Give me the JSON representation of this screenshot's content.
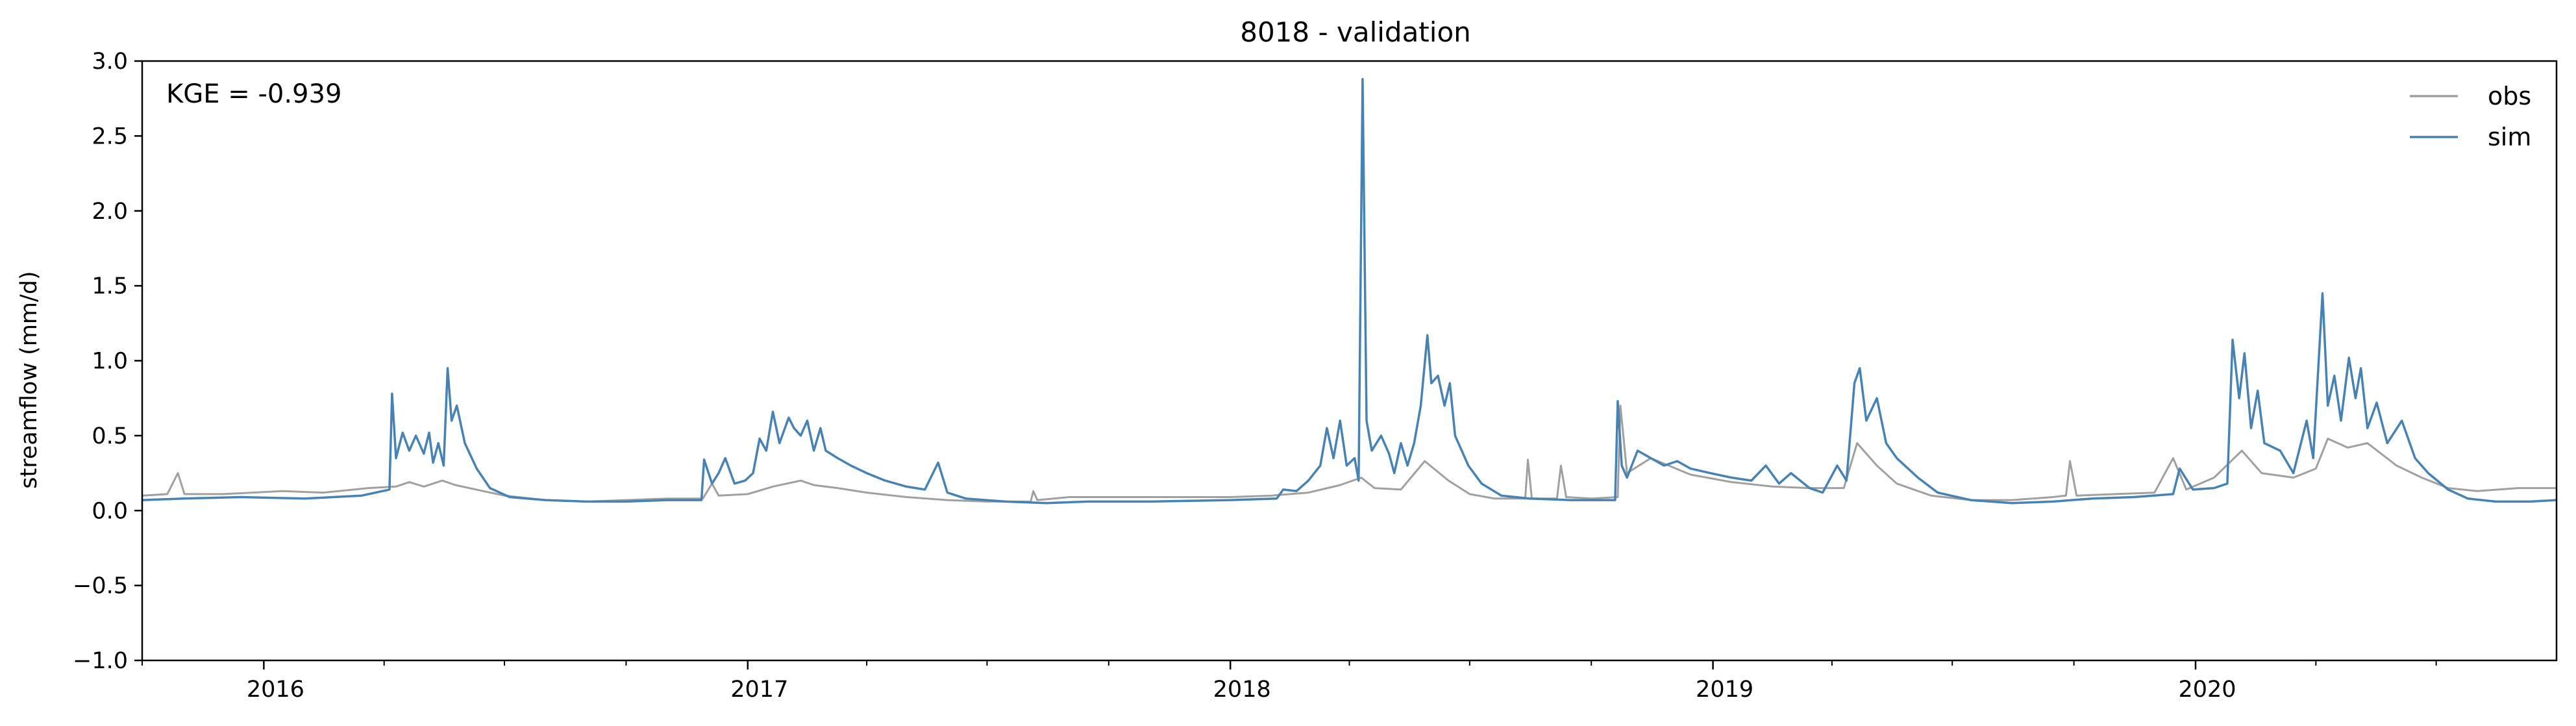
{
  "chart_data": {
    "type": "line",
    "title": "8018 - validation",
    "xlabel": "",
    "ylabel": "streamflow (mm/d)",
    "annotation": "KGE = -0.939",
    "xlim": [
      "2015-10-01",
      "2020-09-30"
    ],
    "ylim": [
      -1.0,
      3.0
    ],
    "yticks": [
      -1.0,
      -0.5,
      0.0,
      0.5,
      1.0,
      1.5,
      2.0,
      2.5,
      3.0
    ],
    "ytick_labels": [
      "−1.0",
      "−0.5",
      "0.0",
      "0.5",
      "1.0",
      "1.5",
      "2.0",
      "2.5",
      "3.0"
    ],
    "xticks": [
      {
        "date": "2016-01-01",
        "label": "2016"
      },
      {
        "date": "2017-01-01",
        "label": "2017"
      },
      {
        "date": "2018-01-01",
        "label": "2018"
      },
      {
        "date": "2019-01-01",
        "label": "2019"
      },
      {
        "date": "2020-01-01",
        "label": "2020"
      }
    ],
    "grid": false,
    "legend_position": "top-right",
    "series": [
      {
        "name": "obs",
        "color": "#a0a0a0",
        "points": [
          [
            "2015-10-01",
            0.1
          ],
          [
            "2015-10-20",
            0.11
          ],
          [
            "2015-10-28",
            0.25
          ],
          [
            "2015-11-02",
            0.11
          ],
          [
            "2015-12-01",
            0.11
          ],
          [
            "2016-01-15",
            0.13
          ],
          [
            "2016-02-15",
            0.12
          ],
          [
            "2016-03-20",
            0.15
          ],
          [
            "2016-04-10",
            0.16
          ],
          [
            "2016-04-20",
            0.19
          ],
          [
            "2016-05-01",
            0.16
          ],
          [
            "2016-05-15",
            0.2
          ],
          [
            "2016-05-25",
            0.17
          ],
          [
            "2016-06-15",
            0.13
          ],
          [
            "2016-07-01",
            0.1
          ],
          [
            "2016-08-01",
            0.07
          ],
          [
            "2016-09-01",
            0.06
          ],
          [
            "2016-10-01",
            0.07
          ],
          [
            "2016-11-01",
            0.08
          ],
          [
            "2016-11-28",
            0.08
          ],
          [
            "2016-12-05",
            0.18
          ],
          [
            "2016-12-10",
            0.1
          ],
          [
            "2017-01-01",
            0.11
          ],
          [
            "2017-01-20",
            0.16
          ],
          [
            "2017-02-10",
            0.2
          ],
          [
            "2017-02-20",
            0.17
          ],
          [
            "2017-03-10",
            0.15
          ],
          [
            "2017-04-01",
            0.12
          ],
          [
            "2017-05-01",
            0.09
          ],
          [
            "2017-06-01",
            0.07
          ],
          [
            "2017-07-01",
            0.06
          ],
          [
            "2017-08-03",
            0.06
          ],
          [
            "2017-08-05",
            0.13
          ],
          [
            "2017-08-08",
            0.07
          ],
          [
            "2017-09-01",
            0.09
          ],
          [
            "2017-11-01",
            0.09
          ],
          [
            "2018-01-01",
            0.09
          ],
          [
            "2018-02-01",
            0.1
          ],
          [
            "2018-03-01",
            0.12
          ],
          [
            "2018-03-25",
            0.17
          ],
          [
            "2018-04-10",
            0.22
          ],
          [
            "2018-04-20",
            0.15
          ],
          [
            "2018-05-10",
            0.14
          ],
          [
            "2018-05-28",
            0.33
          ],
          [
            "2018-06-15",
            0.2
          ],
          [
            "2018-07-01",
            0.11
          ],
          [
            "2018-07-20",
            0.08
          ],
          [
            "2018-08-12",
            0.08
          ],
          [
            "2018-08-14",
            0.34
          ],
          [
            "2018-08-17",
            0.08
          ],
          [
            "2018-09-05",
            0.08
          ],
          [
            "2018-09-08",
            0.3
          ],
          [
            "2018-09-12",
            0.09
          ],
          [
            "2018-10-01",
            0.08
          ],
          [
            "2018-10-21",
            0.09
          ],
          [
            "2018-10-23",
            0.7
          ],
          [
            "2018-10-28",
            0.25
          ],
          [
            "2018-11-15",
            0.35
          ],
          [
            "2018-12-15",
            0.24
          ],
          [
            "2019-01-15",
            0.19
          ],
          [
            "2019-02-15",
            0.16
          ],
          [
            "2019-03-15",
            0.15
          ],
          [
            "2019-04-10",
            0.15
          ],
          [
            "2019-04-20",
            0.45
          ],
          [
            "2019-05-05",
            0.3
          ],
          [
            "2019-05-20",
            0.18
          ],
          [
            "2019-06-15",
            0.1
          ],
          [
            "2019-07-15",
            0.07
          ],
          [
            "2019-08-15",
            0.07
          ],
          [
            "2019-09-15",
            0.09
          ],
          [
            "2019-09-25",
            0.1
          ],
          [
            "2019-09-28",
            0.33
          ],
          [
            "2019-10-03",
            0.1
          ],
          [
            "2019-11-01",
            0.11
          ],
          [
            "2019-12-01",
            0.12
          ],
          [
            "2019-12-15",
            0.35
          ],
          [
            "2019-12-25",
            0.14
          ],
          [
            "2020-01-15",
            0.22
          ],
          [
            "2020-02-05",
            0.4
          ],
          [
            "2020-02-20",
            0.25
          ],
          [
            "2020-03-15",
            0.22
          ],
          [
            "2020-04-01",
            0.28
          ],
          [
            "2020-04-10",
            0.48
          ],
          [
            "2020-04-25",
            0.42
          ],
          [
            "2020-05-10",
            0.45
          ],
          [
            "2020-06-01",
            0.3
          ],
          [
            "2020-06-20",
            0.22
          ],
          [
            "2020-07-10",
            0.15
          ],
          [
            "2020-08-01",
            0.13
          ],
          [
            "2020-09-01",
            0.15
          ],
          [
            "2020-09-30",
            0.15
          ]
        ]
      },
      {
        "name": "sim",
        "color": "#4682b4",
        "points": [
          [
            "2015-10-01",
            0.07
          ],
          [
            "2015-11-01",
            0.08
          ],
          [
            "2015-12-15",
            0.09
          ],
          [
            "2016-02-01",
            0.08
          ],
          [
            "2016-03-15",
            0.1
          ],
          [
            "2016-04-05",
            0.14
          ],
          [
            "2016-04-07",
            0.78
          ],
          [
            "2016-04-10",
            0.35
          ],
          [
            "2016-04-15",
            0.52
          ],
          [
            "2016-04-20",
            0.4
          ],
          [
            "2016-04-25",
            0.5
          ],
          [
            "2016-05-01",
            0.38
          ],
          [
            "2016-05-05",
            0.52
          ],
          [
            "2016-05-08",
            0.32
          ],
          [
            "2016-05-12",
            0.45
          ],
          [
            "2016-05-16",
            0.3
          ],
          [
            "2016-05-19",
            0.95
          ],
          [
            "2016-05-22",
            0.6
          ],
          [
            "2016-05-26",
            0.7
          ],
          [
            "2016-06-01",
            0.45
          ],
          [
            "2016-06-10",
            0.28
          ],
          [
            "2016-06-20",
            0.15
          ],
          [
            "2016-07-05",
            0.09
          ],
          [
            "2016-08-01",
            0.07
          ],
          [
            "2016-09-01",
            0.06
          ],
          [
            "2016-10-01",
            0.06
          ],
          [
            "2016-11-01",
            0.07
          ],
          [
            "2016-11-27",
            0.07
          ],
          [
            "2016-11-29",
            0.34
          ],
          [
            "2016-12-05",
            0.18
          ],
          [
            "2016-12-10",
            0.25
          ],
          [
            "2016-12-15",
            0.35
          ],
          [
            "2016-12-22",
            0.18
          ],
          [
            "2016-12-30",
            0.2
          ],
          [
            "2017-01-05",
            0.25
          ],
          [
            "2017-01-10",
            0.48
          ],
          [
            "2017-01-15",
            0.4
          ],
          [
            "2017-01-20",
            0.66
          ],
          [
            "2017-01-25",
            0.45
          ],
          [
            "2017-02-01",
            0.62
          ],
          [
            "2017-02-05",
            0.55
          ],
          [
            "2017-02-10",
            0.5
          ],
          [
            "2017-02-15",
            0.6
          ],
          [
            "2017-02-20",
            0.4
          ],
          [
            "2017-02-25",
            0.55
          ],
          [
            "2017-03-01",
            0.4
          ],
          [
            "2017-03-10",
            0.35
          ],
          [
            "2017-03-20",
            0.3
          ],
          [
            "2017-04-01",
            0.25
          ],
          [
            "2017-04-15",
            0.2
          ],
          [
            "2017-05-01",
            0.16
          ],
          [
            "2017-05-15",
            0.14
          ],
          [
            "2017-05-25",
            0.32
          ],
          [
            "2017-06-01",
            0.12
          ],
          [
            "2017-06-15",
            0.08
          ],
          [
            "2017-07-15",
            0.06
          ],
          [
            "2017-08-15",
            0.05
          ],
          [
            "2017-09-15",
            0.06
          ],
          [
            "2017-11-01",
            0.06
          ],
          [
            "2018-01-01",
            0.07
          ],
          [
            "2018-02-05",
            0.08
          ],
          [
            "2018-02-10",
            0.14
          ],
          [
            "2018-02-20",
            0.13
          ],
          [
            "2018-03-01",
            0.2
          ],
          [
            "2018-03-10",
            0.3
          ],
          [
            "2018-03-15",
            0.55
          ],
          [
            "2018-03-20",
            0.35
          ],
          [
            "2018-03-25",
            0.6
          ],
          [
            "2018-03-30",
            0.3
          ],
          [
            "2018-04-05",
            0.35
          ],
          [
            "2018-04-08",
            0.2
          ],
          [
            "2018-04-11",
            2.88
          ],
          [
            "2018-04-14",
            0.6
          ],
          [
            "2018-04-18",
            0.4
          ],
          [
            "2018-04-25",
            0.5
          ],
          [
            "2018-05-01",
            0.38
          ],
          [
            "2018-05-05",
            0.25
          ],
          [
            "2018-05-10",
            0.45
          ],
          [
            "2018-05-15",
            0.3
          ],
          [
            "2018-05-20",
            0.45
          ],
          [
            "2018-05-25",
            0.7
          ],
          [
            "2018-05-30",
            1.17
          ],
          [
            "2018-06-02",
            0.85
          ],
          [
            "2018-06-07",
            0.9
          ],
          [
            "2018-06-12",
            0.7
          ],
          [
            "2018-06-16",
            0.85
          ],
          [
            "2018-06-20",
            0.5
          ],
          [
            "2018-06-30",
            0.3
          ],
          [
            "2018-07-10",
            0.18
          ],
          [
            "2018-07-25",
            0.1
          ],
          [
            "2018-08-15",
            0.08
          ],
          [
            "2018-09-15",
            0.07
          ],
          [
            "2018-10-19",
            0.07
          ],
          [
            "2018-10-21",
            0.73
          ],
          [
            "2018-10-24",
            0.3
          ],
          [
            "2018-10-28",
            0.22
          ],
          [
            "2018-11-05",
            0.4
          ],
          [
            "2018-11-15",
            0.35
          ],
          [
            "2018-11-25",
            0.3
          ],
          [
            "2018-12-05",
            0.33
          ],
          [
            "2018-12-15",
            0.28
          ],
          [
            "2018-12-30",
            0.25
          ],
          [
            "2019-01-15",
            0.22
          ],
          [
            "2019-01-30",
            0.2
          ],
          [
            "2019-02-10",
            0.3
          ],
          [
            "2019-02-20",
            0.18
          ],
          [
            "2019-03-01",
            0.25
          ],
          [
            "2019-03-15",
            0.15
          ],
          [
            "2019-03-25",
            0.12
          ],
          [
            "2019-04-05",
            0.3
          ],
          [
            "2019-04-12",
            0.2
          ],
          [
            "2019-04-18",
            0.85
          ],
          [
            "2019-04-22",
            0.95
          ],
          [
            "2019-04-27",
            0.6
          ],
          [
            "2019-05-05",
            0.75
          ],
          [
            "2019-05-12",
            0.45
          ],
          [
            "2019-05-20",
            0.35
          ],
          [
            "2019-06-05",
            0.22
          ],
          [
            "2019-06-20",
            0.12
          ],
          [
            "2019-07-15",
            0.07
          ],
          [
            "2019-08-15",
            0.05
          ],
          [
            "2019-09-15",
            0.06
          ],
          [
            "2019-10-15",
            0.08
          ],
          [
            "2019-11-15",
            0.09
          ],
          [
            "2019-12-15",
            0.11
          ],
          [
            "2019-12-20",
            0.28
          ],
          [
            "2019-12-30",
            0.14
          ],
          [
            "2020-01-15",
            0.15
          ],
          [
            "2020-01-25",
            0.18
          ],
          [
            "2020-01-29",
            1.14
          ],
          [
            "2020-02-03",
            0.75
          ],
          [
            "2020-02-07",
            1.05
          ],
          [
            "2020-02-12",
            0.55
          ],
          [
            "2020-02-17",
            0.8
          ],
          [
            "2020-02-22",
            0.45
          ],
          [
            "2020-03-05",
            0.4
          ],
          [
            "2020-03-15",
            0.25
          ],
          [
            "2020-03-25",
            0.6
          ],
          [
            "2020-03-30",
            0.35
          ],
          [
            "2020-04-06",
            1.45
          ],
          [
            "2020-04-10",
            0.7
          ],
          [
            "2020-04-15",
            0.9
          ],
          [
            "2020-04-20",
            0.6
          ],
          [
            "2020-04-26",
            1.02
          ],
          [
            "2020-05-01",
            0.75
          ],
          [
            "2020-05-05",
            0.95
          ],
          [
            "2020-05-10",
            0.55
          ],
          [
            "2020-05-17",
            0.72
          ],
          [
            "2020-05-25",
            0.45
          ],
          [
            "2020-06-05",
            0.6
          ],
          [
            "2020-06-15",
            0.35
          ],
          [
            "2020-06-25",
            0.25
          ],
          [
            "2020-07-10",
            0.14
          ],
          [
            "2020-07-25",
            0.08
          ],
          [
            "2020-08-15",
            0.06
          ],
          [
            "2020-09-10",
            0.06
          ],
          [
            "2020-09-30",
            0.07
          ]
        ]
      }
    ]
  }
}
